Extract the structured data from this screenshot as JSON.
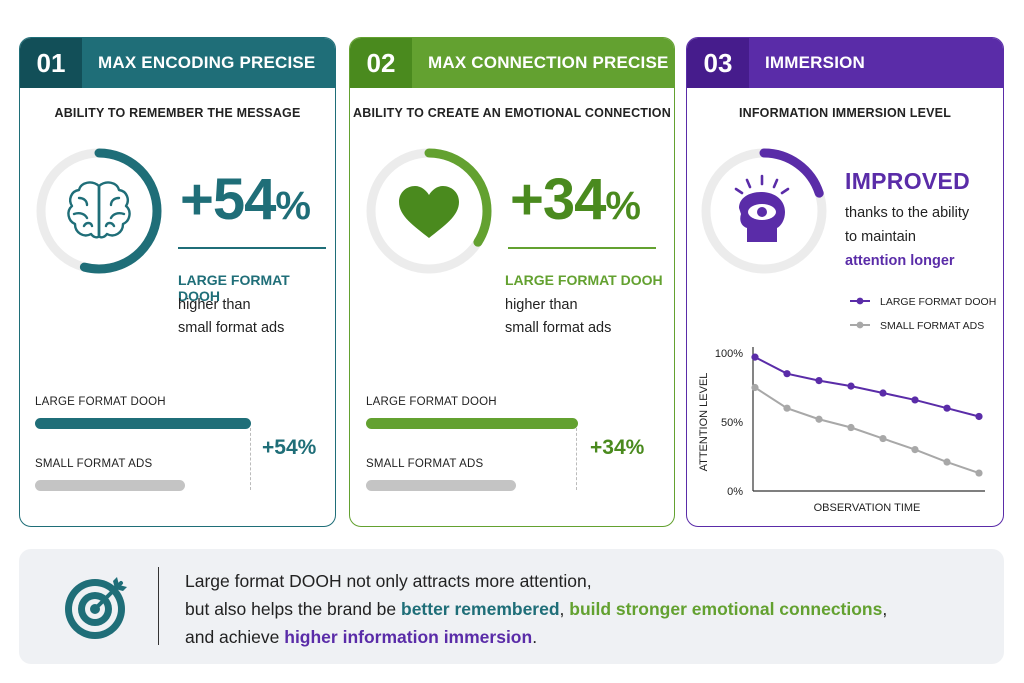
{
  "colors": {
    "teal": "#1f6e78",
    "green": "#63a130",
    "purple": "#5a2ca8",
    "gray": "#bdbdbd"
  },
  "cards": [
    {
      "number": "01",
      "title": "MAX ENCODING PRECISE",
      "subtitle": "ABILITY TO REMEMBER THE MESSAGE",
      "icon": "brain-icon",
      "ring_fraction": 0.54,
      "big_value": "+54",
      "percent_sign": "%",
      "strong_label": "LARGE FORMAT DOOH",
      "line1": "higher than",
      "line2": "small format ads",
      "bar_large_label": "LARGE FORMAT DOOH",
      "bar_small_label": "SMALL FORMAT ADS",
      "bar_diff": "+54%"
    },
    {
      "number": "02",
      "title": "MAX CONNECTION PRECISE",
      "subtitle": "ABILITY TO CREATE AN EMOTIONAL CONNECTION",
      "icon": "heart-icon",
      "ring_fraction": 0.34,
      "big_value": "+34",
      "percent_sign": "%",
      "strong_label": "LARGE FORMAT DOOH",
      "line1": "higher than",
      "line2": "small format ads",
      "bar_large_label": "LARGE FORMAT DOOH",
      "bar_small_label": "SMALL FORMAT ADS",
      "bar_diff": "+34%"
    },
    {
      "number": "03",
      "title": "IMMERSION",
      "subtitle": "INFORMATION IMMERSION LEVEL",
      "icon": "eye-head-icon",
      "ring_fraction": 0.2,
      "headline": "IMPROVED",
      "line1": "thanks to the ability",
      "line2": "to maintain",
      "emphasis": "attention longer"
    }
  ],
  "chart_data": {
    "type": "line",
    "xlabel": "OBSERVATION TIME",
    "ylabel": "ATTENTION LEVEL",
    "yticks": [
      "100%",
      "50%",
      "0%"
    ],
    "ylim": [
      0,
      100
    ],
    "x": [
      1,
      2,
      3,
      4,
      5,
      6,
      7,
      8
    ],
    "series": [
      {
        "name": "LARGE FORMAT DOOH",
        "color": "#5a2ca8",
        "values": [
          97,
          85,
          80,
          76,
          71,
          66,
          60,
          54
        ]
      },
      {
        "name": "SMALL FORMAT ADS",
        "color": "#a8a8a8",
        "values": [
          75,
          60,
          52,
          46,
          38,
          30,
          21,
          13
        ]
      }
    ],
    "legend": "top-right",
    "grid": false
  },
  "bottom": {
    "icon": "target-icon",
    "line1": "Large format DOOH not only attracts more attention,",
    "line2_a": "but also helps the brand be ",
    "line2_b": "better remembered",
    "line2_c": ", ",
    "line2_d": "build stronger emotional connections",
    "line2_e": ",",
    "line3_a": "and achieve ",
    "line3_b": "higher information immersion",
    "line3_c": "."
  }
}
